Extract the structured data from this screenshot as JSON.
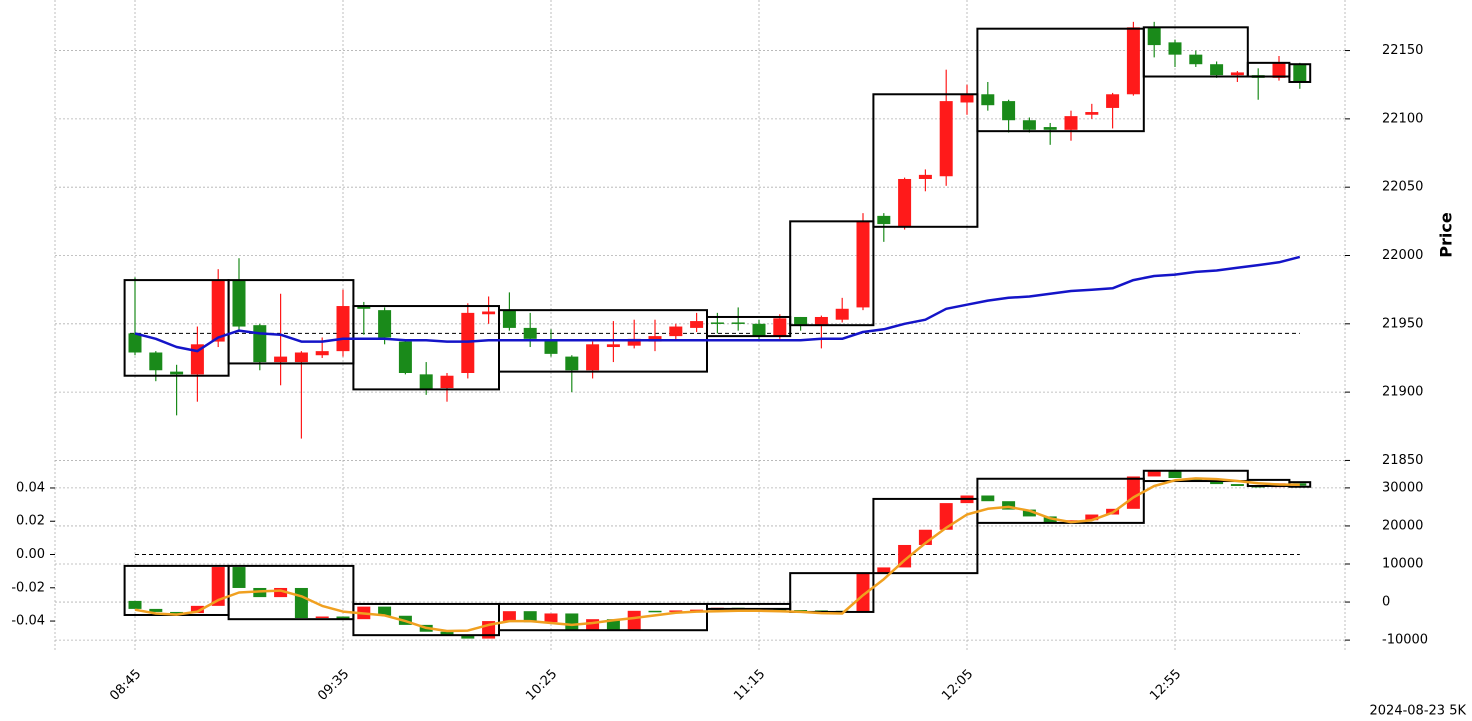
{
  "chart_data": [
    {
      "type": "candlestick",
      "ylabel": "Price",
      "ylim": [
        21843,
        22187
      ],
      "yticks": [
        21850,
        21900,
        21950,
        22000,
        22050,
        22100,
        22150
      ],
      "grid": true,
      "up_color": "#ff1a1a",
      "down_color": "#1a8a1a",
      "open": [
        21943,
        21929,
        21915,
        21913,
        21937,
        21982,
        21949,
        21922,
        21922,
        21927,
        21930,
        21963,
        21960,
        21937,
        21913,
        21903,
        21914,
        21957,
        21960,
        21947,
        21938,
        21926,
        21916,
        21933,
        21934,
        21937,
        21941,
        21947,
        21951,
        21951,
        21950,
        21941,
        21955,
        21949,
        21953,
        21962,
        22029,
        22021,
        22056,
        22058,
        22112,
        22118,
        22113,
        22099,
        22094,
        22092,
        22103,
        22108,
        22118,
        22167,
        22156,
        22147,
        22140,
        22132,
        22132,
        22130,
        22140
      ],
      "high": [
        21984,
        21930,
        21920,
        21948,
        21990,
        21998,
        21950,
        21972,
        21930,
        21940,
        21975,
        21966,
        21962,
        21938,
        21922,
        21914,
        21965,
        21970,
        21973,
        21958,
        21946,
        21927,
        21937,
        21952,
        21953,
        21953,
        21950,
        21958,
        21958,
        21962,
        21953,
        21957,
        21955,
        21956,
        21969,
        22031,
        22031,
        22057,
        22063,
        22136,
        22125,
        22127,
        22114,
        22101,
        22097,
        22106,
        22111,
        22119,
        22171,
        22171,
        22158,
        22150,
        22142,
        22135,
        22137,
        22146,
        22141
      ],
      "low": [
        21927,
        21908,
        21883,
        21893,
        21933,
        21945,
        21916,
        21905,
        21866,
        21925,
        21926,
        21942,
        21935,
        21913,
        21898,
        21893,
        21910,
        21950,
        21945,
        21933,
        21926,
        21900,
        21910,
        21922,
        21932,
        21930,
        21938,
        21944,
        21943,
        21945,
        21938,
        21939,
        21945,
        21932,
        21951,
        21960,
        22010,
        22019,
        22047,
        22051,
        22103,
        22106,
        22090,
        22090,
        22081,
        22084,
        22100,
        22093,
        22117,
        22145,
        22138,
        22138,
        22130,
        22127,
        22114,
        22128,
        22122
      ],
      "close": [
        21929,
        21916,
        21913,
        21935,
        21982,
        21948,
        21922,
        21926,
        21929,
        21930,
        21963,
        21961,
        21940,
        21914,
        21902,
        21912,
        21958,
        21959,
        21947,
        21939,
        21928,
        21916,
        21935,
        21935,
        21939,
        21941,
        21948,
        21952,
        21950,
        21950,
        21941,
        21954,
        21949,
        21955,
        21961,
        22025,
        22023,
        22056,
        22059,
        22113,
        22118,
        22110,
        22099,
        22092,
        22092,
        22102,
        22105,
        22118,
        22167,
        22154,
        22147,
        22140,
        22132,
        22134,
        22130,
        22141,
        22127
      ],
      "line": {
        "color": "#1414c8",
        "values": [
          21943,
          21939,
          21933,
          21930,
          21940,
          21945,
          21943,
          21942,
          21937,
          21937,
          21939,
          21939,
          21939,
          21938,
          21938,
          21937,
          21937,
          21938,
          21938,
          21938,
          21938,
          21938,
          21938,
          21938,
          21938,
          21938,
          21938,
          21938,
          21938,
          21938,
          21938,
          21938,
          21938,
          21939,
          21939,
          21944,
          21946,
          21950,
          21953,
          21961,
          21964,
          21967,
          21969,
          21970,
          21972,
          21974,
          21975,
          21976,
          21982,
          21985,
          21986,
          21988,
          21989,
          21991,
          21993,
          21995,
          21999
        ]
      },
      "reference_line": 21943,
      "box_color": "#000000",
      "boxes": [
        {
          "start": 0,
          "end": 4,
          "top": 21982,
          "bottom": 21912
        },
        {
          "start": 5,
          "end": 10,
          "top": 21982,
          "bottom": 21921
        },
        {
          "start": 11,
          "end": 17,
          "top": 21963,
          "bottom": 21902
        },
        {
          "start": 18,
          "end": 27,
          "top": 21960,
          "bottom": 21915
        },
        {
          "start": 28,
          "end": 31,
          "top": 21955,
          "bottom": 21941
        },
        {
          "start": 32,
          "end": 35,
          "top": 22025,
          "bottom": 21949
        },
        {
          "start": 36,
          "end": 40,
          "top": 22118,
          "bottom": 22021
        },
        {
          "start": 41,
          "end": 48,
          "top": 22166,
          "bottom": 22091
        },
        {
          "start": 49,
          "end": 53,
          "top": 22167,
          "bottom": 22131
        },
        {
          "start": 54,
          "end": 55,
          "top": 22141,
          "bottom": 22131
        },
        {
          "start": 56,
          "end": 56,
          "top": 22140,
          "bottom": 22127
        }
      ]
    },
    {
      "type": "candlestick",
      "categories": [
        "08:45",
        null,
        null,
        null,
        null,
        null,
        null,
        null,
        null,
        null,
        "09:35",
        null,
        null,
        null,
        null,
        null,
        null,
        null,
        null,
        null,
        "10:25",
        null,
        null,
        null,
        null,
        null,
        null,
        null,
        null,
        null,
        "11:15",
        null,
        null,
        null,
        null,
        null,
        null,
        null,
        null,
        null,
        "12:05",
        null,
        null,
        null,
        null,
        null,
        null,
        null,
        null,
        null,
        "12:55",
        null,
        null,
        null,
        null,
        null,
        null
      ],
      "ylim": [
        -0.0574,
        0.0508
      ],
      "yticks": [
        -0.04,
        -0.02,
        {
          "value": 0,
          "label": "0.00"
        },
        0.02,
        0.04
      ],
      "y2lim": [
        -12600,
        34700
      ],
      "y2ticks": [
        -10000,
        0,
        10000,
        20000,
        30000
      ],
      "grid": true,
      "up_color": "#ff1a1a",
      "down_color": "#1a8a1a",
      "axis": "y2",
      "open": [
        300,
        -1800,
        -2600,
        -2900,
        -1000,
        9200,
        3700,
        1300,
        3700,
        -4200,
        -3800,
        -4500,
        -1200,
        -3600,
        -6000,
        -7800,
        -8900,
        -9600,
        -5000,
        -2400,
        -5300,
        -3000,
        -7500,
        -4500,
        -7200,
        -2300,
        -2500,
        -2200,
        -2000,
        -1500,
        -2000,
        -1900,
        -2100,
        -2200,
        -2300,
        -2500,
        7400,
        9100,
        15000,
        19000,
        26000,
        28000,
        26500,
        24300,
        22500,
        21000,
        21500,
        23000,
        24500,
        33000,
        34500,
        32600,
        32000,
        31000,
        30500,
        30200,
        31200
      ],
      "close": [
        -1800,
        -2600,
        -2900,
        -1000,
        9200,
        3700,
        1300,
        3700,
        -4200,
        -3800,
        -4500,
        -1200,
        -3600,
        -6000,
        -7800,
        -8900,
        -9600,
        -5000,
        -2400,
        -5300,
        -3000,
        -7500,
        -4500,
        -7200,
        -2300,
        -2500,
        -2200,
        -2000,
        -1500,
        -2000,
        -1900,
        -2100,
        -2200,
        -2300,
        -2500,
        7400,
        9100,
        15000,
        19000,
        26000,
        28000,
        26500,
        24300,
        22500,
        21000,
        21500,
        23000,
        24500,
        33000,
        34500,
        32600,
        32000,
        31000,
        30500,
        30200,
        31200,
        30600
      ],
      "line": {
        "color": "#f0a020",
        "values": [
          -2000,
          -3000,
          -3300,
          -2500,
          500,
          2500,
          2800,
          3000,
          1500,
          -1000,
          -2500,
          -3000,
          -3500,
          -5000,
          -6800,
          -7600,
          -7500,
          -6000,
          -5000,
          -5000,
          -5500,
          -6000,
          -5500,
          -4800,
          -4200,
          -3500,
          -2800,
          -2500,
          -2400,
          -2300,
          -2300,
          -2400,
          -2600,
          -2900,
          -3000,
          1800,
          6000,
          11000,
          15500,
          19500,
          23000,
          24500,
          25000,
          24000,
          22000,
          21000,
          21500,
          23500,
          27500,
          30500,
          32000,
          32500,
          32300,
          31800,
          31200,
          30900,
          30800
        ]
      },
      "reference_line": 0,
      "box_color": "#000000",
      "boxes": [
        {
          "start": 0,
          "end": 4,
          "top": 9500,
          "bottom": -3400
        },
        {
          "start": 5,
          "end": 10,
          "top": 9500,
          "bottom": -4500
        },
        {
          "start": 11,
          "end": 17,
          "top": -500,
          "bottom": -8700
        },
        {
          "start": 18,
          "end": 27,
          "top": -500,
          "bottom": -7400
        },
        {
          "start": 28,
          "end": 31,
          "top": -500,
          "bottom": -1800
        },
        {
          "start": 32,
          "end": 35,
          "top": 7600,
          "bottom": -2600
        },
        {
          "start": 36,
          "end": 40,
          "top": 27100,
          "bottom": 7600
        },
        {
          "start": 41,
          "end": 48,
          "top": 32400,
          "bottom": 20800
        },
        {
          "start": 49,
          "end": 53,
          "top": 34500,
          "bottom": 31800
        },
        {
          "start": 54,
          "end": 55,
          "top": 32100,
          "bottom": 30500
        },
        {
          "start": 56,
          "end": 56,
          "top": 31500,
          "bottom": 30300
        }
      ],
      "caption": "2024-08-23 5K"
    }
  ]
}
